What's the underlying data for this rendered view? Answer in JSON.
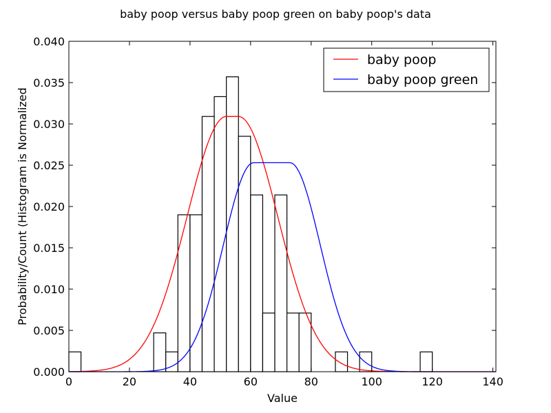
{
  "chart_data": {
    "type": "bar",
    "title": "baby poop versus baby poop green on baby poop's data",
    "xlabel": "Value",
    "ylabel": "Probability/Count (Histogram is Normalized",
    "xlim": [
      0,
      141
    ],
    "ylim": [
      0,
      0.04
    ],
    "xticks": [
      0,
      20,
      40,
      60,
      80,
      100,
      120,
      140
    ],
    "yticks": [
      0.0,
      0.005,
      0.01,
      0.015,
      0.02,
      0.025,
      0.03,
      0.035,
      0.04
    ],
    "yticks_labels": [
      "0.000",
      "0.005",
      "0.010",
      "0.015",
      "0.020",
      "0.025",
      "0.030",
      "0.035",
      "0.040"
    ],
    "histogram": {
      "bin_width": 4,
      "bins": [
        {
          "x0": 0,
          "height": 0.0024
        },
        {
          "x0": 28,
          "height": 0.0047
        },
        {
          "x0": 32,
          "height": 0.0024
        },
        {
          "x0": 36,
          "height": 0.019
        },
        {
          "x0": 40,
          "height": 0.019
        },
        {
          "x0": 44,
          "height": 0.0309
        },
        {
          "x0": 48,
          "height": 0.0333
        },
        {
          "x0": 52,
          "height": 0.0357
        },
        {
          "x0": 56,
          "height": 0.0285
        },
        {
          "x0": 60,
          "height": 0.0214
        },
        {
          "x0": 64,
          "height": 0.0071
        },
        {
          "x0": 68,
          "height": 0.0214
        },
        {
          "x0": 72,
          "height": 0.0071
        },
        {
          "x0": 76,
          "height": 0.0071
        },
        {
          "x0": 88,
          "height": 0.0024
        },
        {
          "x0": 96,
          "height": 0.0024
        },
        {
          "x0": 116,
          "height": 0.0024
        }
      ]
    },
    "series": [
      {
        "name": "baby poop",
        "color": "#ff0000",
        "kind": "plateau-gaussian",
        "plateau": [
          52,
          56
        ],
        "peak": 0.0309,
        "sigma": 13
      },
      {
        "name": "baby poop green",
        "color": "#0000ff",
        "kind": "plateau-gaussian",
        "plateau": [
          61,
          73
        ],
        "peak": 0.0253,
        "sigma": 10
      }
    ],
    "legend_position": "top-right",
    "grid": false
  }
}
